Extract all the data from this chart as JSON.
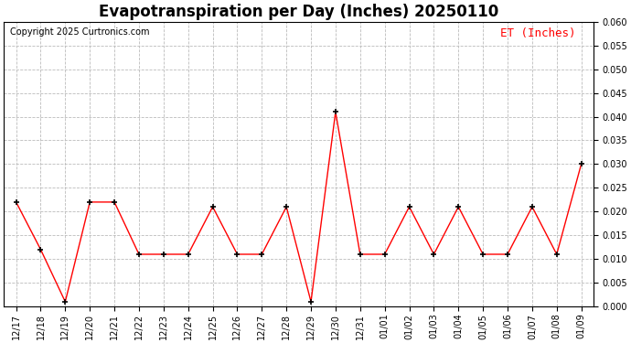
{
  "title": "Evapotranspiration per Day (Inches) 20250110",
  "copyright": "Copyright 2025 Curtronics.com",
  "legend_label": "ET (Inches)",
  "legend_color": "red",
  "labels": [
    "12/17",
    "12/18",
    "12/19",
    "12/20",
    "12/21",
    "12/22",
    "12/23",
    "12/24",
    "12/25",
    "12/26",
    "12/27",
    "12/28",
    "12/29",
    "12/30",
    "12/31",
    "01/01",
    "01/02",
    "01/03",
    "01/04",
    "01/05",
    "01/06",
    "01/07",
    "01/08",
    "01/09"
  ],
  "values": [
    0.022,
    0.012,
    0.001,
    0.022,
    0.022,
    0.011,
    0.011,
    0.011,
    0.021,
    0.011,
    0.011,
    0.021,
    0.001,
    0.041,
    0.011,
    0.011,
    0.021,
    0.011,
    0.021,
    0.011,
    0.011,
    0.021,
    0.011,
    0.03
  ],
  "line_color": "red",
  "marker_color": "black",
  "marker": "+",
  "ylim": [
    0.0,
    0.06
  ],
  "ytick_step": 0.005,
  "background_color": "white",
  "grid_color": "#bbbbbb",
  "title_fontsize": 12,
  "copyright_fontsize": 7,
  "legend_fontsize": 9,
  "tick_fontsize": 7,
  "marker_size": 5
}
